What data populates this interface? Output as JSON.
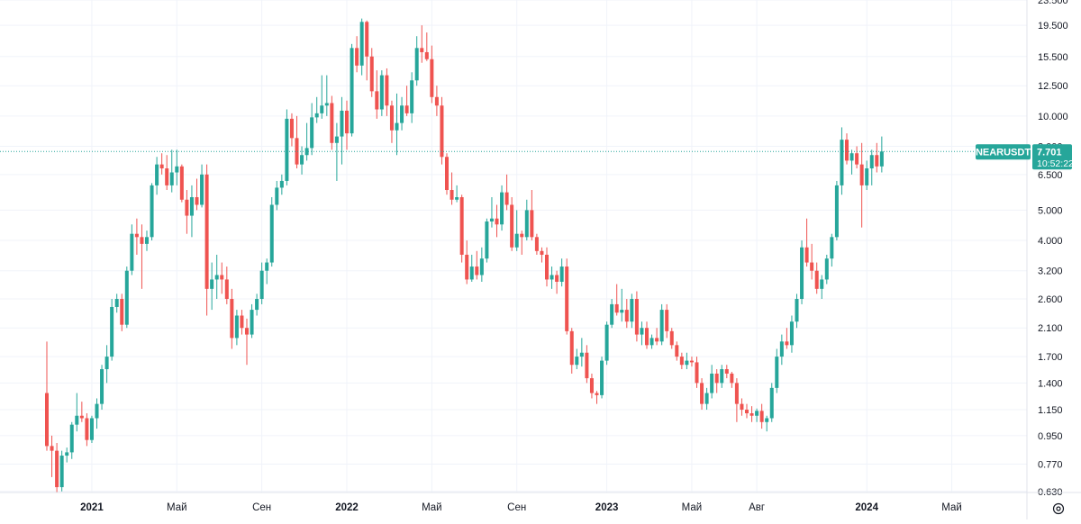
{
  "chart_data": {
    "type": "candlestick",
    "symbol": "NEARUSDT",
    "last_price": "7.701",
    "countdown": "10:52:22",
    "y_scale": "log",
    "ylim": [
      0.625,
      23.5
    ],
    "y_ticks": [
      "0.630",
      "0.770",
      "0.950",
      "1.150",
      "1.400",
      "1.700",
      "2.100",
      "2.600",
      "3.200",
      "4.000",
      "5.000",
      "6.500",
      "8.000",
      "10.000",
      "12.500",
      "15.500",
      "19.500",
      "23.500"
    ],
    "x_ticks": [
      {
        "label": "2021",
        "index": 9
      },
      {
        "label": "Май",
        "index": 26
      },
      {
        "label": "Сен",
        "index": 43
      },
      {
        "label": "2022",
        "index": 60
      },
      {
        "label": "Май",
        "index": 77
      },
      {
        "label": "Сен",
        "index": 94
      },
      {
        "label": "2023",
        "index": 112
      },
      {
        "label": "Май",
        "index": 129
      },
      {
        "label": "Авг",
        "index": 142
      },
      {
        "label": "2024",
        "index": 164
      },
      {
        "label": "Май",
        "index": 181
      }
    ],
    "grid": true,
    "colors": {
      "up": "#26a69a",
      "down": "#ef5350",
      "price_line": "#26a69a",
      "grid": "#f0f3fa",
      "axis_text": "#131722"
    },
    "candles": [
      [
        1.3,
        1.9,
        0.85,
        0.88
      ],
      [
        0.88,
        0.95,
        0.7,
        0.85
      ],
      [
        0.85,
        0.9,
        0.62,
        0.65
      ],
      [
        0.65,
        0.85,
        0.63,
        0.82
      ],
      [
        0.82,
        0.87,
        0.78,
        0.84
      ],
      [
        0.84,
        1.05,
        0.8,
        1.03
      ],
      [
        1.03,
        1.3,
        0.98,
        1.1
      ],
      [
        1.1,
        1.22,
        1.05,
        1.08
      ],
      [
        1.08,
        1.12,
        0.88,
        0.92
      ],
      [
        0.92,
        1.1,
        0.9,
        1.08
      ],
      [
        1.08,
        1.25,
        1.0,
        1.2
      ],
      [
        1.2,
        1.6,
        1.15,
        1.55
      ],
      [
        1.55,
        1.85,
        1.4,
        1.7
      ],
      [
        1.7,
        2.6,
        1.65,
        2.45
      ],
      [
        2.45,
        2.7,
        2.35,
        2.6
      ],
      [
        2.6,
        2.7,
        2.05,
        2.15
      ],
      [
        2.15,
        3.3,
        2.1,
        3.2
      ],
      [
        3.2,
        4.5,
        3.1,
        4.2
      ],
      [
        4.2,
        4.7,
        3.6,
        4.1
      ],
      [
        4.1,
        4.5,
        2.8,
        3.9
      ],
      [
        3.9,
        4.3,
        3.7,
        4.1
      ],
      [
        4.1,
        6.1,
        4.0,
        6.0
      ],
      [
        6.0,
        7.4,
        5.6,
        7.0
      ],
      [
        7.0,
        7.6,
        6.5,
        6.8
      ],
      [
        6.8,
        7.5,
        5.8,
        6.0
      ],
      [
        6.0,
        7.8,
        5.7,
        6.6
      ],
      [
        6.6,
        7.8,
        6.0,
        6.9
      ],
      [
        6.9,
        7.0,
        5.3,
        5.4
      ],
      [
        5.4,
        5.8,
        4.2,
        4.8
      ],
      [
        4.8,
        6.0,
        4.1,
        5.5
      ],
      [
        5.5,
        6.3,
        5.0,
        5.2
      ],
      [
        5.2,
        7.0,
        5.1,
        6.5
      ],
      [
        6.5,
        7.0,
        2.3,
        2.8
      ],
      [
        2.8,
        3.4,
        2.4,
        3.0
      ],
      [
        3.0,
        3.6,
        2.6,
        3.1
      ],
      [
        3.1,
        3.4,
        2.7,
        3.0
      ],
      [
        3.0,
        3.3,
        2.5,
        2.6
      ],
      [
        2.6,
        2.8,
        1.8,
        1.95
      ],
      [
        1.95,
        2.4,
        1.85,
        2.3
      ],
      [
        2.3,
        2.4,
        2.0,
        2.1
      ],
      [
        2.1,
        2.25,
        1.6,
        2.0
      ],
      [
        2.0,
        2.5,
        1.95,
        2.4
      ],
      [
        2.4,
        2.7,
        2.3,
        2.6
      ],
      [
        2.6,
        3.4,
        2.5,
        3.2
      ],
      [
        3.2,
        3.5,
        2.9,
        3.4
      ],
      [
        3.4,
        5.5,
        3.3,
        5.2
      ],
      [
        5.2,
        6.2,
        5.0,
        5.9
      ],
      [
        5.9,
        6.5,
        5.6,
        6.2
      ],
      [
        6.2,
        10.5,
        6.0,
        9.8
      ],
      [
        9.8,
        10.2,
        8.0,
        8.5
      ],
      [
        8.5,
        10.0,
        6.8,
        7.0
      ],
      [
        7.0,
        8.0,
        6.5,
        7.5
      ],
      [
        7.5,
        9.5,
        7.2,
        7.9
      ],
      [
        7.9,
        11.0,
        7.5,
        9.9
      ],
      [
        9.9,
        11.5,
        9.5,
        10.2
      ],
      [
        10.2,
        13.5,
        9.8,
        10.8
      ],
      [
        10.8,
        13.5,
        10.0,
        11.0
      ],
      [
        11.0,
        11.6,
        7.8,
        8.2
      ],
      [
        8.2,
        9.5,
        6.2,
        8.6
      ],
      [
        8.6,
        11.5,
        7.0,
        10.4
      ],
      [
        10.4,
        11.2,
        7.8,
        8.8
      ],
      [
        8.8,
        17.0,
        8.6,
        16.5
      ],
      [
        16.5,
        18.0,
        13.8,
        14.5
      ],
      [
        14.5,
        20.5,
        13.5,
        20.0
      ],
      [
        20.0,
        20.2,
        13.0,
        15.5
      ],
      [
        15.5,
        16.5,
        11.5,
        12.0
      ],
      [
        12.0,
        14.0,
        9.8,
        10.5
      ],
      [
        10.5,
        14.0,
        10.0,
        13.5
      ],
      [
        13.5,
        14.2,
        10.0,
        10.8
      ],
      [
        10.8,
        11.2,
        8.2,
        9.0
      ],
      [
        9.0,
        11.8,
        7.5,
        9.5
      ],
      [
        9.5,
        11.5,
        9.0,
        10.8
      ],
      [
        10.8,
        12.5,
        10.0,
        10.2
      ],
      [
        10.2,
        13.8,
        9.5,
        13.0
      ],
      [
        13.0,
        18.0,
        12.5,
        16.5
      ],
      [
        16.5,
        19.5,
        14.8,
        16.0
      ],
      [
        16.0,
        18.5,
        15.0,
        15.2
      ],
      [
        15.2,
        16.8,
        11.0,
        11.5
      ],
      [
        11.5,
        12.5,
        10.0,
        10.8
      ],
      [
        10.8,
        11.5,
        7.0,
        7.4
      ],
      [
        7.4,
        7.6,
        5.6,
        5.8
      ],
      [
        5.8,
        6.6,
        5.2,
        5.4
      ],
      [
        5.4,
        6.0,
        5.3,
        5.5
      ],
      [
        5.5,
        5.6,
        3.4,
        3.6
      ],
      [
        3.6,
        4.0,
        2.9,
        3.0
      ],
      [
        3.0,
        3.6,
        2.95,
        3.3
      ],
      [
        3.3,
        3.7,
        3.0,
        3.1
      ],
      [
        3.1,
        3.8,
        2.95,
        3.5
      ],
      [
        3.5,
        4.7,
        3.4,
        4.6
      ],
      [
        4.6,
        5.5,
        4.4,
        4.7
      ],
      [
        4.7,
        5.2,
        4.1,
        4.5
      ],
      [
        4.5,
        6.0,
        4.3,
        5.7
      ],
      [
        5.7,
        6.5,
        5.0,
        5.2
      ],
      [
        5.2,
        5.5,
        3.7,
        3.8
      ],
      [
        3.8,
        5.0,
        3.7,
        4.2
      ],
      [
        4.2,
        4.3,
        3.6,
        4.1
      ],
      [
        4.1,
        5.4,
        4.0,
        5.0
      ],
      [
        5.0,
        5.8,
        4.0,
        4.1
      ],
      [
        4.1,
        4.2,
        3.6,
        3.7
      ],
      [
        3.7,
        3.8,
        3.4,
        3.6
      ],
      [
        3.6,
        3.8,
        2.85,
        3.0
      ],
      [
        3.0,
        3.3,
        2.8,
        3.1
      ],
      [
        3.1,
        3.2,
        2.7,
        2.95
      ],
      [
        2.95,
        3.5,
        2.85,
        3.3
      ],
      [
        3.3,
        3.5,
        2.0,
        2.05
      ],
      [
        2.05,
        2.1,
        1.5,
        1.6
      ],
      [
        1.6,
        1.8,
        1.55,
        1.7
      ],
      [
        1.7,
        1.95,
        1.58,
        1.75
      ],
      [
        1.75,
        1.85,
        1.4,
        1.45
      ],
      [
        1.45,
        1.5,
        1.25,
        1.3
      ],
      [
        1.3,
        1.32,
        1.2,
        1.28
      ],
      [
        1.28,
        1.7,
        1.25,
        1.65
      ],
      [
        1.65,
        2.2,
        1.6,
        2.15
      ],
      [
        2.15,
        2.6,
        2.1,
        2.5
      ],
      [
        2.5,
        2.9,
        2.3,
        2.35
      ],
      [
        2.35,
        2.8,
        2.2,
        2.4
      ],
      [
        2.4,
        2.6,
        2.1,
        2.2
      ],
      [
        2.2,
        2.7,
        2.1,
        2.6
      ],
      [
        2.6,
        2.75,
        1.9,
        2.0
      ],
      [
        2.0,
        2.2,
        1.85,
        2.1
      ],
      [
        2.1,
        2.2,
        1.8,
        1.85
      ],
      [
        1.85,
        2.0,
        1.8,
        1.95
      ],
      [
        1.95,
        2.1,
        1.85,
        1.9
      ],
      [
        1.9,
        2.5,
        1.85,
        2.4
      ],
      [
        2.4,
        2.5,
        1.95,
        2.05
      ],
      [
        2.05,
        2.1,
        1.8,
        1.85
      ],
      [
        1.85,
        1.9,
        1.65,
        1.7
      ],
      [
        1.7,
        1.75,
        1.55,
        1.6
      ],
      [
        1.6,
        1.75,
        1.55,
        1.65
      ],
      [
        1.65,
        1.7,
        1.58,
        1.63
      ],
      [
        1.63,
        1.7,
        1.35,
        1.4
      ],
      [
        1.4,
        1.45,
        1.15,
        1.2
      ],
      [
        1.2,
        1.35,
        1.15,
        1.3
      ],
      [
        1.3,
        1.6,
        1.25,
        1.5
      ],
      [
        1.5,
        1.55,
        1.3,
        1.4
      ],
      [
        1.4,
        1.6,
        1.35,
        1.55
      ],
      [
        1.55,
        1.6,
        1.45,
        1.5
      ],
      [
        1.5,
        1.52,
        1.35,
        1.4
      ],
      [
        1.4,
        1.45,
        1.05,
        1.2
      ],
      [
        1.2,
        1.25,
        1.1,
        1.15
      ],
      [
        1.15,
        1.2,
        1.08,
        1.12
      ],
      [
        1.12,
        1.18,
        1.05,
        1.1
      ],
      [
        1.1,
        1.16,
        1.05,
        1.14
      ],
      [
        1.14,
        1.2,
        1.0,
        1.05
      ],
      [
        1.05,
        1.1,
        0.98,
        1.08
      ],
      [
        1.08,
        1.4,
        1.05,
        1.35
      ],
      [
        1.35,
        1.8,
        1.3,
        1.7
      ],
      [
        1.7,
        2.0,
        1.6,
        1.9
      ],
      [
        1.9,
        2.1,
        1.8,
        1.85
      ],
      [
        1.85,
        2.3,
        1.75,
        2.2
      ],
      [
        2.2,
        2.7,
        2.1,
        2.6
      ],
      [
        2.6,
        4.0,
        2.5,
        3.8
      ],
      [
        3.8,
        4.7,
        3.3,
        3.4
      ],
      [
        3.4,
        3.9,
        3.0,
        3.2
      ],
      [
        3.2,
        3.4,
        2.7,
        2.8
      ],
      [
        2.8,
        3.1,
        2.6,
        3.0
      ],
      [
        3.0,
        3.6,
        2.9,
        3.5
      ],
      [
        3.5,
        4.2,
        3.3,
        4.1
      ],
      [
        4.1,
        6.2,
        4.0,
        6.0
      ],
      [
        6.0,
        9.2,
        5.6,
        8.4
      ],
      [
        8.4,
        8.8,
        7.0,
        7.2
      ],
      [
        7.2,
        7.8,
        6.5,
        7.6
      ],
      [
        7.6,
        8.0,
        6.8,
        7.0
      ],
      [
        7.0,
        8.2,
        4.4,
        6.0
      ],
      [
        6.0,
        7.2,
        5.8,
        6.8
      ],
      [
        6.8,
        7.8,
        6.0,
        7.5
      ],
      [
        7.5,
        8.2,
        6.6,
        6.9
      ],
      [
        6.9,
        8.6,
        6.6,
        7.7
      ]
    ]
  }
}
